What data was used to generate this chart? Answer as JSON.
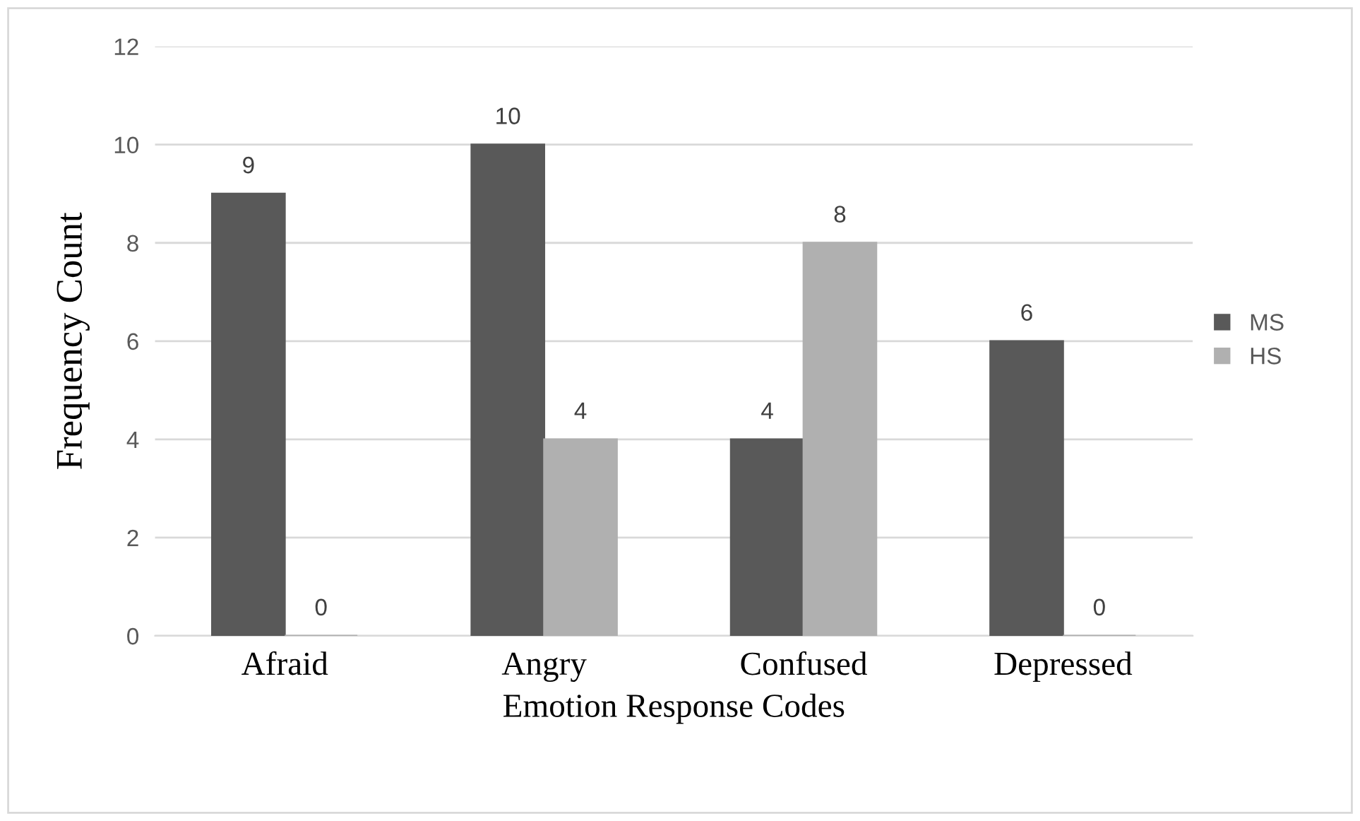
{
  "chart_data": {
    "type": "bar",
    "xlabel": "Emotion Response Codes",
    "ylabel": "Frequency Count",
    "categories": [
      "Afraid",
      "Angry",
      "Confused",
      "Depressed"
    ],
    "series": [
      {
        "name": "MS",
        "color": "#595959",
        "values": [
          9,
          10,
          4,
          6
        ]
      },
      {
        "name": "HS",
        "color": "#b0b0b0",
        "values": [
          0,
          4,
          8,
          0
        ]
      }
    ],
    "ylim": [
      0,
      12
    ],
    "yticks": [
      0,
      2,
      4,
      6,
      8,
      10,
      12
    ],
    "grid": "y",
    "legend": "right",
    "data_labels": true
  }
}
